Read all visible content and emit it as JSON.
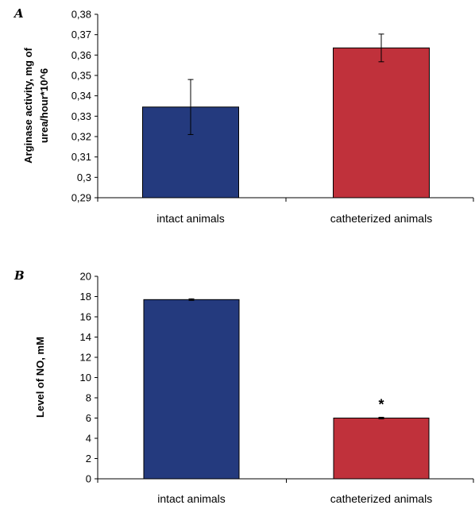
{
  "chart_data": [
    {
      "panel": "A",
      "type": "bar",
      "categories": [
        "intact animals",
        "catheterized animals"
      ],
      "values": [
        0.3345,
        0.3635
      ],
      "errors": [
        0.0135,
        0.0068
      ],
      "ylabel_lines": [
        "Arginase activity, mg of",
        "urea/hour*10^6"
      ],
      "ylim": [
        0.29,
        0.38
      ],
      "yticks": [
        0.29,
        0.3,
        0.31,
        0.32,
        0.33,
        0.34,
        0.35,
        0.36,
        0.37,
        0.38
      ],
      "ytick_labels": [
        "0,29",
        "0,3",
        "0,31",
        "0,32",
        "0,33",
        "0,34",
        "0,35",
        "0,36",
        "0,37",
        "0,38"
      ],
      "colors": [
        "#243a7e",
        "#c0313b"
      ],
      "annotations": [],
      "grid": false
    },
    {
      "panel": "B",
      "type": "bar",
      "categories": [
        "intact animals",
        "catheterized animals"
      ],
      "values": [
        17.7,
        6.0
      ],
      "errors": [
        0.08,
        0.08
      ],
      "ylabel_lines": [
        "Level of NO,  mM"
      ],
      "ylim": [
        0,
        20
      ],
      "yticks": [
        0,
        2,
        4,
        6,
        8,
        10,
        12,
        14,
        16,
        18,
        20
      ],
      "ytick_labels": [
        "0",
        "2",
        "4",
        "6",
        "8",
        "10",
        "12",
        "14",
        "16",
        "18",
        "20"
      ],
      "colors": [
        "#243a7e",
        "#c0313b"
      ],
      "annotations": [
        {
          "category_index": 1,
          "text": "*"
        }
      ],
      "grid": false
    }
  ]
}
